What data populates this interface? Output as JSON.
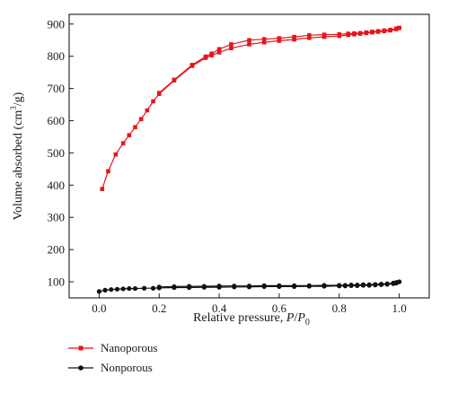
{
  "chart_data": {
    "type": "line",
    "xlabel_prefix": "Relative pressure, ",
    "xlabel_var": "P",
    "xlabel_sep": "/",
    "xlabel_var2": "P",
    "xlabel_sub": "0",
    "ylabel_prefix": "Volume absorbed (cm",
    "ylabel_sup": "3",
    "ylabel_suffix": "/g)",
    "xlim": [
      -0.1,
      1.1
    ],
    "ylim": [
      50,
      930
    ],
    "xticks": [
      "0.0",
      "0.2",
      "0.4",
      "0.6",
      "0.8",
      "1.0"
    ],
    "xtick_values": [
      0.0,
      0.2,
      0.4,
      0.6,
      0.8,
      1.0
    ],
    "yticks": [
      "100",
      "200",
      "300",
      "400",
      "500",
      "600",
      "700",
      "800",
      "900"
    ],
    "ytick_values": [
      100,
      200,
      300,
      400,
      500,
      600,
      700,
      800,
      900
    ],
    "grid": false,
    "legend_position": "bottom-left",
    "series": [
      {
        "name": "Nanoporous",
        "color": "#e8141b",
        "marker": "square",
        "adsorption": {
          "x": [
            0.01,
            0.03,
            0.055,
            0.08,
            0.1,
            0.12,
            0.14,
            0.16,
            0.18,
            0.2,
            0.25,
            0.31,
            0.355,
            0.375,
            0.4,
            0.44,
            0.5,
            0.55,
            0.6,
            0.65,
            0.7,
            0.75,
            0.8,
            0.83,
            0.85,
            0.87,
            0.89,
            0.91,
            0.93,
            0.95,
            0.97,
            0.99,
            1.0
          ],
          "y": [
            388,
            443,
            495,
            530,
            555,
            580,
            605,
            632,
            660,
            683,
            725,
            770,
            795,
            803,
            812,
            825,
            837,
            843,
            848,
            852,
            857,
            860,
            863,
            866,
            868,
            870,
            872,
            874,
            876,
            878,
            880,
            884,
            888
          ]
        },
        "desorption": {
          "x": [
            1.0,
            0.99,
            0.97,
            0.95,
            0.93,
            0.91,
            0.89,
            0.87,
            0.85,
            0.83,
            0.8,
            0.75,
            0.7,
            0.65,
            0.6,
            0.55,
            0.5,
            0.44,
            0.4,
            0.375,
            0.355,
            0.31,
            0.25,
            0.2
          ],
          "y": [
            888,
            886,
            882,
            880,
            878,
            876,
            874,
            872,
            871,
            870,
            868,
            867,
            865,
            860,
            856,
            853,
            850,
            837,
            822,
            808,
            799,
            773,
            727,
            686
          ]
        }
      },
      {
        "name": "Nonporous",
        "color": "#111111",
        "marker": "circle",
        "adsorption": {
          "x": [
            0.0,
            0.02,
            0.04,
            0.06,
            0.08,
            0.1,
            0.12,
            0.15,
            0.18,
            0.2,
            0.25,
            0.3,
            0.35,
            0.4,
            0.45,
            0.5,
            0.55,
            0.6,
            0.65,
            0.7,
            0.75,
            0.8,
            0.82,
            0.84,
            0.86,
            0.88,
            0.9,
            0.92,
            0.94,
            0.96,
            0.98,
            0.99,
            1.0
          ],
          "y": [
            70,
            74,
            76,
            77,
            78,
            79,
            79,
            80,
            80,
            81,
            82,
            82,
            83,
            83,
            84,
            84,
            85,
            85,
            85,
            86,
            86,
            87,
            87,
            88,
            88,
            89,
            89,
            90,
            91,
            92,
            94,
            96,
            100
          ]
        },
        "desorption": {
          "x": [
            1.0,
            0.99,
            0.98,
            0.96,
            0.94,
            0.92,
            0.9,
            0.88,
            0.86,
            0.84,
            0.82,
            0.8,
            0.75,
            0.7,
            0.65,
            0.6,
            0.55,
            0.5,
            0.45,
            0.4,
            0.35,
            0.3,
            0.25,
            0.2
          ],
          "y": [
            100,
            98,
            96,
            94,
            93,
            92,
            91,
            91,
            90,
            90,
            89,
            89,
            89,
            88,
            88,
            88,
            88,
            87,
            87,
            87,
            86,
            86,
            85,
            84
          ]
        }
      }
    ]
  }
}
